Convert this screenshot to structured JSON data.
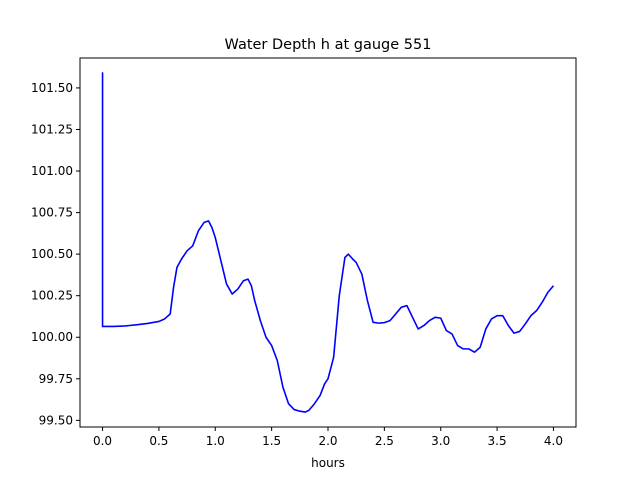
{
  "chart_data": {
    "type": "line",
    "title": "Water Depth h at gauge 551",
    "xlabel": "hours",
    "ylabel": "",
    "xlim": [
      -0.2,
      4.2
    ],
    "ylim": [
      99.46,
      101.68
    ],
    "xticks": [
      0.0,
      0.5,
      1.0,
      1.5,
      2.0,
      2.5,
      3.0,
      3.5,
      4.0
    ],
    "xtick_labels": [
      "0.0",
      "0.5",
      "1.0",
      "1.5",
      "2.0",
      "2.5",
      "3.0",
      "3.5",
      "4.0"
    ],
    "yticks": [
      99.5,
      99.75,
      100.0,
      100.25,
      100.5,
      100.75,
      101.0,
      101.25,
      101.5
    ],
    "ytick_labels": [
      "99.50",
      "99.75",
      "100.00",
      "100.25",
      "100.50",
      "100.75",
      "101.00",
      "101.25",
      "101.50"
    ],
    "grid": false,
    "series": [
      {
        "color": "#0000ff",
        "x": [
          0.0,
          0.0,
          0.0,
          0.1,
          0.2,
          0.3,
          0.4,
          0.5,
          0.55,
          0.6,
          0.63,
          0.66,
          0.7,
          0.75,
          0.8,
          0.85,
          0.9,
          0.94,
          0.97,
          1.0,
          1.05,
          1.1,
          1.15,
          1.2,
          1.25,
          1.29,
          1.32,
          1.35,
          1.4,
          1.45,
          1.5,
          1.55,
          1.6,
          1.65,
          1.7,
          1.75,
          1.8,
          1.83,
          1.88,
          1.93,
          1.97,
          2.0,
          2.05,
          2.1,
          2.15,
          2.18,
          2.22,
          2.25,
          2.3,
          2.35,
          2.4,
          2.45,
          2.5,
          2.55,
          2.6,
          2.65,
          2.7,
          2.75,
          2.8,
          2.85,
          2.9,
          2.95,
          3.0,
          3.05,
          3.1,
          3.15,
          3.2,
          3.25,
          3.3,
          3.35,
          3.4,
          3.45,
          3.5,
          3.55,
          3.6,
          3.65,
          3.7,
          3.75,
          3.8,
          3.85,
          3.9,
          3.95,
          4.0
        ],
        "y": [
          100.06,
          101.59,
          100.065,
          100.065,
          100.068,
          100.075,
          100.083,
          100.095,
          100.11,
          100.14,
          100.3,
          100.42,
          100.47,
          100.52,
          100.55,
          100.64,
          100.69,
          100.7,
          100.66,
          100.6,
          100.46,
          100.32,
          100.26,
          100.29,
          100.34,
          100.35,
          100.31,
          100.22,
          100.1,
          100.0,
          99.95,
          99.86,
          99.7,
          99.6,
          99.565,
          99.555,
          99.55,
          99.56,
          99.6,
          99.65,
          99.72,
          99.75,
          99.88,
          100.25,
          100.48,
          100.5,
          100.47,
          100.45,
          100.38,
          100.22,
          100.09,
          100.085,
          100.088,
          100.1,
          100.14,
          100.18,
          100.19,
          100.12,
          100.05,
          100.07,
          100.1,
          100.12,
          100.115,
          100.04,
          100.02,
          99.95,
          99.93,
          99.93,
          99.91,
          99.94,
          100.05,
          100.11,
          100.13,
          100.13,
          100.07,
          100.025,
          100.035,
          100.08,
          100.13,
          100.16,
          100.21,
          100.27,
          100.31
        ]
      }
    ]
  }
}
